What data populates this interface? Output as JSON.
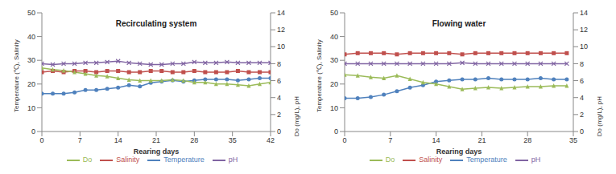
{
  "chart_data": [
    {
      "type": "line",
      "title": "Recirculating system",
      "x_label": "Rearing days",
      "y_label": "Temperature (℃), Salinity",
      "y2_label": "Do (mg/L), pH",
      "x": [
        0,
        2,
        4,
        6,
        8,
        10,
        12,
        14,
        16,
        18,
        20,
        22,
        24,
        26,
        28,
        30,
        32,
        34,
        36,
        38,
        40,
        42
      ],
      "xlim": [
        0,
        42
      ],
      "xticks": [
        0,
        7,
        14,
        21,
        28,
        35,
        42
      ],
      "ylim": [
        0,
        50
      ],
      "yticks": [
        0,
        10,
        20,
        30,
        40,
        50
      ],
      "y2lim": [
        0,
        14
      ],
      "y2ticks": [
        0,
        2,
        4,
        6,
        8,
        10,
        12,
        14
      ],
      "legend": "bottom",
      "grid": false,
      "series": [
        {
          "name": "Temperature",
          "color": "#4f81bd",
          "marker": "circle",
          "values": [
            16,
            16,
            16,
            16.5,
            17.5,
            17.5,
            18,
            18.5,
            19.5,
            19,
            20.5,
            21,
            21.5,
            21,
            21.5,
            22,
            22,
            22,
            21.5,
            22,
            22.5,
            22.5
          ]
        },
        {
          "name": "Salinity",
          "color": "#c0504d",
          "marker": "square",
          "values": [
            25,
            25.5,
            25,
            25.5,
            25.5,
            25,
            25.5,
            25.5,
            25,
            25,
            25.5,
            25.5,
            25,
            25,
            25.5,
            25,
            25,
            25,
            25.5,
            25,
            25,
            25
          ]
        },
        {
          "name": "Do",
          "color": "#9bbb59",
          "marker": "triangle",
          "axis": "y2",
          "values": [
            7.5,
            7.3,
            7.2,
            7,
            6.8,
            6.6,
            6.5,
            6.3,
            6.1,
            6,
            6,
            6,
            6.1,
            6,
            5.8,
            5.8,
            5.6,
            5.6,
            5.5,
            5.4,
            5.6,
            5.8
          ]
        },
        {
          "name": "pH",
          "color": "#8064a2",
          "marker": "cross",
          "axis": "y2",
          "values": [
            8,
            7.9,
            8,
            8,
            8.1,
            8.1,
            8.2,
            8.3,
            8.1,
            8,
            7.9,
            7.9,
            8,
            8,
            8.2,
            8.1,
            8.1,
            8.2,
            8.1,
            8.1,
            8.1,
            8.1
          ]
        }
      ]
    },
    {
      "type": "line",
      "title": "Flowing water",
      "x_label": "Rearing days",
      "y_label": "Temperature (℃), Salinity",
      "y2_label": "Do (mg/L), pH",
      "x": [
        0,
        2,
        4,
        6,
        8,
        10,
        12,
        14,
        16,
        18,
        20,
        22,
        24,
        26,
        28,
        30,
        32,
        34
      ],
      "xlim": [
        0,
        35
      ],
      "xticks": [
        0,
        7,
        14,
        21,
        28,
        35
      ],
      "ylim": [
        0,
        50
      ],
      "yticks": [
        0,
        10,
        20,
        30,
        40,
        50
      ],
      "y2lim": [
        0,
        14
      ],
      "y2ticks": [
        0,
        2,
        4,
        6,
        8,
        10,
        12,
        14
      ],
      "legend": "bottom",
      "grid": false,
      "series": [
        {
          "name": "Temperature",
          "color": "#4f81bd",
          "marker": "circle",
          "values": [
            14,
            14,
            14.5,
            15.5,
            17,
            18.5,
            19.5,
            21,
            21.5,
            22,
            22,
            22.5,
            22,
            22,
            22,
            22.5,
            22,
            22
          ]
        },
        {
          "name": "Salinity",
          "color": "#c0504d",
          "marker": "square",
          "values": [
            32.5,
            33,
            33,
            33,
            32.5,
            33,
            33,
            33,
            33,
            32.5,
            33,
            33,
            33,
            33,
            33,
            33,
            33,
            33
          ]
        },
        {
          "name": "Do",
          "color": "#9bbb59",
          "marker": "triangle",
          "axis": "y2",
          "values": [
            6.7,
            6.6,
            6.4,
            6.3,
            6.6,
            6.2,
            5.8,
            5.6,
            5.3,
            5,
            5.1,
            5.2,
            5.1,
            5.2,
            5.3,
            5.3,
            5.4,
            5.4
          ]
        },
        {
          "name": "pH",
          "color": "#8064a2",
          "marker": "cross",
          "axis": "y2",
          "values": [
            8,
            8,
            8,
            8,
            8,
            8,
            8,
            8,
            8,
            8.1,
            8,
            8,
            8,
            8,
            8,
            8,
            8,
            8
          ]
        }
      ]
    }
  ]
}
